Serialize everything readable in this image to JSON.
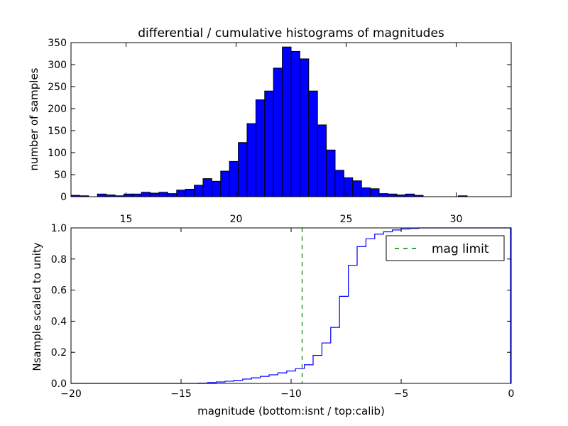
{
  "chart_data": [
    {
      "type": "bar",
      "title": "differential / cumulative histograms of magnitudes",
      "xlabel": "",
      "ylabel": "number of samples",
      "xlim": [
        12.5,
        32.5
      ],
      "ylim": [
        0,
        350
      ],
      "x_ticks": [
        "15",
        "20",
        "25",
        "30"
      ],
      "y_ticks": [
        "0",
        "50",
        "100",
        "150",
        "200",
        "250",
        "300",
        "350"
      ],
      "x_tick_position": "top-of-lower-panel",
      "bar_color": "#0000ff",
      "bin_width": 0.4,
      "bins": [
        {
          "x": 12.5,
          "count": 3
        },
        {
          "x": 12.9,
          "count": 2
        },
        {
          "x": 13.3,
          "count": 0
        },
        {
          "x": 13.7,
          "count": 6
        },
        {
          "x": 14.1,
          "count": 4
        },
        {
          "x": 14.5,
          "count": 2
        },
        {
          "x": 14.9,
          "count": 6
        },
        {
          "x": 15.3,
          "count": 6
        },
        {
          "x": 15.7,
          "count": 10
        },
        {
          "x": 16.1,
          "count": 8
        },
        {
          "x": 16.5,
          "count": 10
        },
        {
          "x": 16.9,
          "count": 7
        },
        {
          "x": 17.3,
          "count": 15
        },
        {
          "x": 17.7,
          "count": 17
        },
        {
          "x": 18.1,
          "count": 26
        },
        {
          "x": 18.5,
          "count": 41
        },
        {
          "x": 18.9,
          "count": 35
        },
        {
          "x": 19.3,
          "count": 58
        },
        {
          "x": 19.7,
          "count": 80
        },
        {
          "x": 20.1,
          "count": 123
        },
        {
          "x": 20.5,
          "count": 166
        },
        {
          "x": 20.9,
          "count": 220
        },
        {
          "x": 21.3,
          "count": 240
        },
        {
          "x": 21.7,
          "count": 292
        },
        {
          "x": 22.1,
          "count": 340
        },
        {
          "x": 22.5,
          "count": 330
        },
        {
          "x": 22.9,
          "count": 313
        },
        {
          "x": 23.3,
          "count": 240
        },
        {
          "x": 23.7,
          "count": 163
        },
        {
          "x": 24.1,
          "count": 106
        },
        {
          "x": 24.5,
          "count": 60
        },
        {
          "x": 24.9,
          "count": 43
        },
        {
          "x": 25.3,
          "count": 36
        },
        {
          "x": 25.7,
          "count": 20
        },
        {
          "x": 26.1,
          "count": 18
        },
        {
          "x": 26.5,
          "count": 7
        },
        {
          "x": 26.9,
          "count": 6
        },
        {
          "x": 27.3,
          "count": 4
        },
        {
          "x": 27.7,
          "count": 6
        },
        {
          "x": 28.1,
          "count": 3
        },
        {
          "x": 28.5,
          "count": 0
        },
        {
          "x": 28.9,
          "count": 0
        },
        {
          "x": 29.3,
          "count": 0
        },
        {
          "x": 29.7,
          "count": 0
        },
        {
          "x": 30.1,
          "count": 2
        },
        {
          "x": 30.5,
          "count": 0
        }
      ]
    },
    {
      "type": "line",
      "title": "",
      "xlabel": "magnitude (bottom:isnt / top:calib)",
      "ylabel": "Nsample scaled to unity",
      "xlim": [
        -20,
        0
      ],
      "ylim": [
        0.0,
        1.0
      ],
      "x_ticks": [
        "−20",
        "−15",
        "−10",
        "−5",
        "0"
      ],
      "y_ticks": [
        "0.0",
        "0.2",
        "0.4",
        "0.6",
        "0.8",
        "1.0"
      ],
      "series": [
        {
          "style": "step",
          "color": "#0000ff",
          "x": [
            -20.0,
            -14.2,
            -13.8,
            -13.4,
            -13.0,
            -12.6,
            -12.2,
            -11.8,
            -11.4,
            -11.0,
            -10.6,
            -10.2,
            -9.8,
            -9.4,
            -9.0,
            -8.6,
            -8.2,
            -7.8,
            -7.4,
            -7.0,
            -6.6,
            -6.2,
            -5.8,
            -5.4,
            -5.0,
            -4.6,
            -4.2,
            0.0
          ],
          "y": [
            0.0,
            0.002,
            0.005,
            0.009,
            0.014,
            0.02,
            0.028,
            0.036,
            0.045,
            0.055,
            0.068,
            0.08,
            0.095,
            0.12,
            0.18,
            0.26,
            0.36,
            0.56,
            0.76,
            0.88,
            0.93,
            0.96,
            0.975,
            0.987,
            0.993,
            0.997,
            1.0,
            1.0
          ]
        },
        {
          "name": "mag limit",
          "style": "dashed-vertical",
          "color": "#008000",
          "x_value": -9.5
        }
      ],
      "legend": {
        "placement": "top-right",
        "entries": [
          {
            "label": "mag limit",
            "color": "#008000",
            "style": "dashed"
          }
        ]
      }
    }
  ]
}
